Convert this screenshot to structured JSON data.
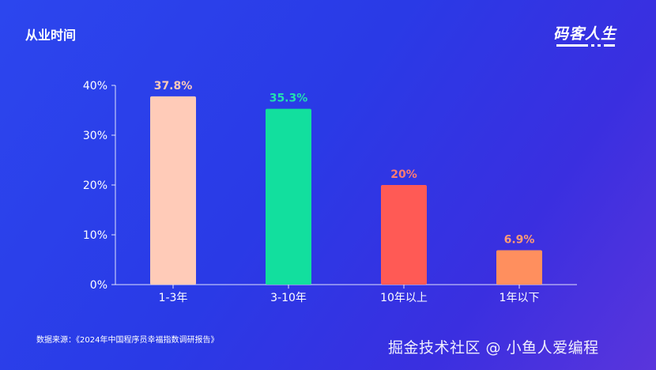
{
  "header": {
    "title": "从业时间"
  },
  "logo": {
    "text": "码客人生"
  },
  "chart_data": {
    "type": "bar",
    "title": "从业时间",
    "xlabel": "",
    "ylabel": "",
    "categories": [
      "1-3年",
      "3-10年",
      "10年以上",
      "1年以下"
    ],
    "values": [
      37.8,
      35.3,
      20,
      6.9
    ],
    "value_labels": [
      "37.8%",
      "35.3%",
      "20%",
      "6.9%"
    ],
    "bar_colors": [
      "#ffcbb8",
      "#12df9e",
      "#ff5a55",
      "#ff8f5e"
    ],
    "label_colors": [
      "#ffcbb8",
      "#22e0b0",
      "#ff7b72",
      "#ff9b76"
    ],
    "ylim": [
      0,
      40
    ],
    "yticks": [
      0,
      10,
      20,
      30,
      40
    ],
    "ytick_labels": [
      "0%",
      "10%",
      "20%",
      "30%",
      "40%"
    ],
    "grid": false,
    "legend": "none"
  },
  "footer": {
    "source": "数据来源：《2024年中国程序员幸福指数调研报告》",
    "watermark": "掘金技术社区 @ 小鱼人爱编程"
  }
}
